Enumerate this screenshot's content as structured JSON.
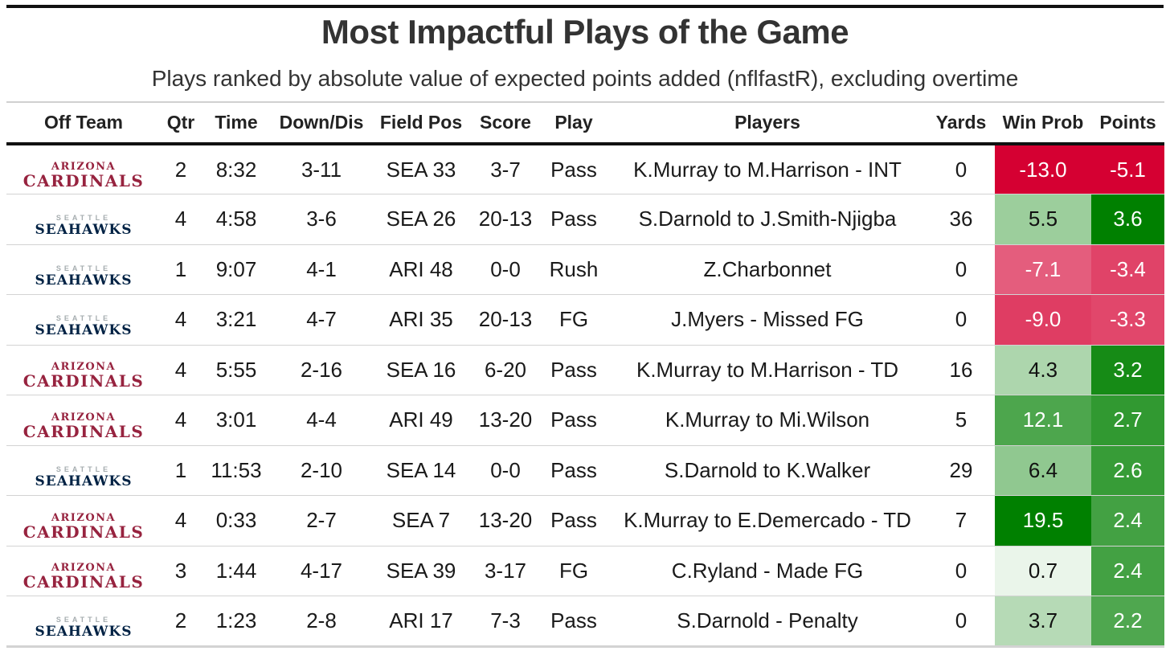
{
  "title": "Most Impactful Plays of the Game",
  "subtitle": "Plays ranked by absolute value of expected points added (nflfastR), excluding overtime",
  "teams": {
    "ARI": {
      "top": "ARIZONA",
      "main": "CARDINALS",
      "color_top": "#97233f",
      "color_main": "#97233f"
    },
    "SEA": {
      "top": "SEATTLE",
      "main": "SEAHAWKS",
      "color_top": "#a5acaf",
      "color_main": "#002244"
    }
  },
  "colors": {
    "negative_strong": "#d50032",
    "positive_strong": "#008000",
    "neutral": "#ffffff"
  },
  "chart_data": {
    "type": "table",
    "title": "Most Impactful Plays of the Game",
    "subtitle": "Plays ranked by absolute value of expected points added (nflfastR), excluding overtime",
    "columns": [
      "Off Team",
      "Qtr",
      "Time",
      "Down/Dis",
      "Field Pos",
      "Score",
      "Play",
      "Players",
      "Yards",
      "Win Prob",
      "Points"
    ],
    "win_prob_range": [
      -13.0,
      19.5
    ],
    "points_range": [
      -5.1,
      3.6
    ],
    "rows": [
      {
        "team": "ARI",
        "qtr": "2",
        "time": "8:32",
        "down_dis": "3-11",
        "field_pos": "SEA 33",
        "score": "3-7",
        "play": "Pass",
        "players": "K.Murray to M.Harrison - INT",
        "yards": "0",
        "win_prob": -13.0,
        "win_prob_label": "-13.0",
        "points": -5.1,
        "points_label": "-5.1"
      },
      {
        "team": "SEA",
        "qtr": "4",
        "time": "4:58",
        "down_dis": "3-6",
        "field_pos": "SEA 26",
        "score": "20-13",
        "play": "Pass",
        "players": "S.Darnold to J.Smith-Njigba",
        "yards": "36",
        "win_prob": 5.5,
        "win_prob_label": "5.5",
        "points": 3.6,
        "points_label": "3.6"
      },
      {
        "team": "SEA",
        "qtr": "1",
        "time": "9:07",
        "down_dis": "4-1",
        "field_pos": "ARI 48",
        "score": "0-0",
        "play": "Rush",
        "players": "Z.Charbonnet",
        "yards": "0",
        "win_prob": -7.1,
        "win_prob_label": "-7.1",
        "points": -3.4,
        "points_label": "-3.4"
      },
      {
        "team": "SEA",
        "qtr": "4",
        "time": "3:21",
        "down_dis": "4-7",
        "field_pos": "ARI 35",
        "score": "20-13",
        "play": "FG",
        "players": "J.Myers - Missed FG",
        "yards": "0",
        "win_prob": -9.0,
        "win_prob_label": "-9.0",
        "points": -3.3,
        "points_label": "-3.3"
      },
      {
        "team": "ARI",
        "qtr": "4",
        "time": "5:55",
        "down_dis": "2-16",
        "field_pos": "SEA 16",
        "score": "6-20",
        "play": "Pass",
        "players": "K.Murray to M.Harrison - TD",
        "yards": "16",
        "win_prob": 4.3,
        "win_prob_label": "4.3",
        "points": 3.2,
        "points_label": "3.2"
      },
      {
        "team": "ARI",
        "qtr": "4",
        "time": "3:01",
        "down_dis": "4-4",
        "field_pos": "ARI 49",
        "score": "13-20",
        "play": "Pass",
        "players": "K.Murray to Mi.Wilson",
        "yards": "5",
        "win_prob": 12.1,
        "win_prob_label": "12.1",
        "points": 2.7,
        "points_label": "2.7"
      },
      {
        "team": "SEA",
        "qtr": "1",
        "time": "11:53",
        "down_dis": "2-10",
        "field_pos": "SEA 14",
        "score": "0-0",
        "play": "Pass",
        "players": "S.Darnold to K.Walker",
        "yards": "29",
        "win_prob": 6.4,
        "win_prob_label": "6.4",
        "points": 2.6,
        "points_label": "2.6"
      },
      {
        "team": "ARI",
        "qtr": "4",
        "time": "0:33",
        "down_dis": "2-7",
        "field_pos": "SEA 7",
        "score": "13-20",
        "play": "Pass",
        "players": "K.Murray to E.Demercado - TD",
        "yards": "7",
        "win_prob": 19.5,
        "win_prob_label": "19.5",
        "points": 2.4,
        "points_label": "2.4"
      },
      {
        "team": "ARI",
        "qtr": "3",
        "time": "1:44",
        "down_dis": "4-17",
        "field_pos": "SEA 39",
        "score": "3-17",
        "play": "FG",
        "players": "C.Ryland - Made FG",
        "yards": "0",
        "win_prob": 0.7,
        "win_prob_label": "0.7",
        "points": 2.4,
        "points_label": "2.4"
      },
      {
        "team": "SEA",
        "qtr": "2",
        "time": "1:23",
        "down_dis": "2-8",
        "field_pos": "ARI 17",
        "score": "7-3",
        "play": "Pass",
        "players": "S.Darnold - Penalty",
        "yards": "0",
        "win_prob": 3.7,
        "win_prob_label": "3.7",
        "points": 2.2,
        "points_label": "2.2"
      }
    ]
  }
}
